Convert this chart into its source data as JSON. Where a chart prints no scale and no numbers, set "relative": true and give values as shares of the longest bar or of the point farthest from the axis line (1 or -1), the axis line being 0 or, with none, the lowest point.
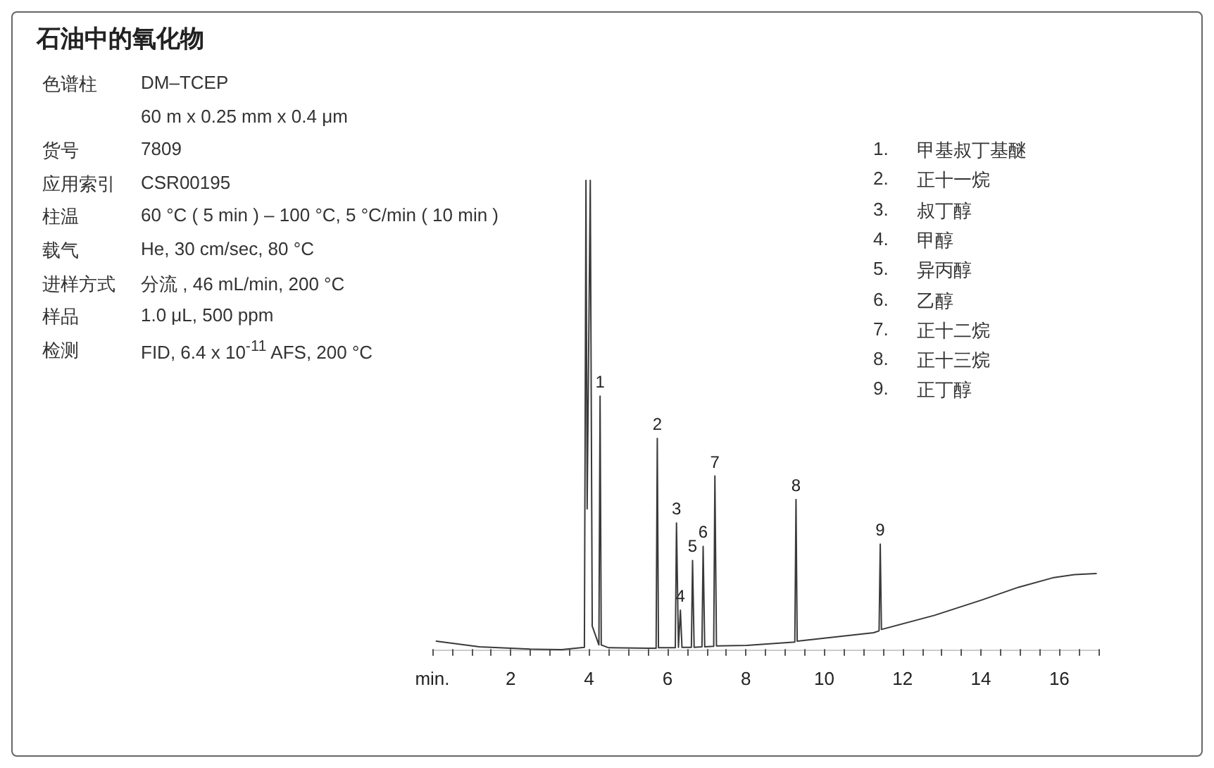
{
  "chart_data": [
    {
      "type": "other",
      "title": "石油中的氧化物",
      "annotations": [
        "色谱柱 DM–TCEP",
        "60 m x 0.25 mm x 0.4 μm",
        "货号 7809",
        "应用索引 CSR00195",
        "柱温 60 °C ( 5 min ) – 100 °C, 5 °C/min ( 10 min )",
        "载气 He, 30 cm/sec, 80 °C",
        "进样方式 分流 , 46 mL/min, 200 °C",
        "样品 1.0 μL, 500 ppm",
        "检测 FID, 6.4 x 10$^{-11}$ AFS, 200 °C"
      ]
    },
    {
      "type": "line",
      "relative": true,
      "color": "#3a3a3a",
      "marker": "none",
      "xlim": [
        0,
        17
      ],
      "xticks": [
        {
          "value": 0,
          "label": "min."
        },
        {
          "value": 0.5,
          "label": null
        },
        {
          "value": 1,
          "label": null
        },
        {
          "value": 1.5,
          "label": null
        },
        2,
        {
          "value": 2.5,
          "label": null
        },
        {
          "value": 3,
          "label": null
        },
        {
          "value": 3.5,
          "label": null
        },
        4,
        {
          "value": 4.5,
          "label": null
        },
        {
          "value": 5,
          "label": null
        },
        {
          "value": 5.5,
          "label": null
        },
        6,
        {
          "value": 6.5,
          "label": null
        },
        {
          "value": 7,
          "label": null
        },
        {
          "value": 7.5,
          "label": null
        },
        8,
        {
          "value": 8.5,
          "label": null
        },
        {
          "value": 9,
          "label": null
        },
        {
          "value": 9.5,
          "label": null
        },
        10,
        {
          "value": 10.5,
          "label": null
        },
        {
          "value": 11,
          "label": null
        },
        {
          "value": 11.5,
          "label": null
        },
        12,
        {
          "value": 12.5,
          "label": null
        },
        {
          "value": 13,
          "label": null
        },
        {
          "value": 13.5,
          "label": null
        },
        14,
        {
          "value": 14.5,
          "label": null
        },
        {
          "value": 15,
          "label": null
        },
        {
          "value": 15.5,
          "label": null
        },
        16,
        {
          "value": 16.5,
          "label": null
        },
        {
          "value": 17,
          "label": null
        }
      ],
      "x": [
        0.1,
        1.2,
        2.5,
        3.3,
        3.88,
        3.92,
        3.95,
        4.03,
        4.08,
        4.25,
        4.28,
        4.31,
        4.5,
        5.5,
        5.71,
        5.74,
        5.77,
        6.2,
        6.23,
        6.28,
        6.33,
        6.37,
        6.61,
        6.64,
        6.68,
        6.88,
        6.91,
        6.95,
        7.18,
        7.21,
        7.25,
        8.02,
        9.25,
        9.28,
        9.31,
        11.26,
        11.4,
        11.43,
        11.46,
        12.81,
        14.03,
        14.96,
        15.83,
        16.4,
        16.94
      ],
      "values": [
        0.018,
        0.006,
        0.001,
        0,
        0.005,
        1,
        0.3,
        1,
        0.05,
        0.01,
        0.54,
        0.01,
        0.004,
        0.003,
        0.003,
        0.45,
        0.004,
        0.004,
        0.27,
        0.005,
        0.084,
        0.005,
        0.005,
        0.19,
        0.005,
        0.006,
        0.22,
        0.006,
        0.007,
        0.37,
        0.008,
        0.009,
        0.016,
        0.32,
        0.018,
        0.036,
        0.04,
        0.225,
        0.043,
        0.073,
        0.106,
        0.133,
        0.153,
        0.16,
        0.162
      ],
      "annotations": [
        "1. 甲基叔丁基醚",
        "2. 正十一烷",
        "3. 叔丁醇",
        "4. 甲醇",
        "5. 异丙醇",
        "6. 乙醇",
        "7. 正十二烷",
        "8. 正十三烷",
        "9. 正丁醇",
        {
          "text": "1",
          "x": 4.28,
          "y": 0.54
        },
        {
          "text": "2",
          "x": 5.74,
          "y": 0.45
        },
        {
          "text": "3",
          "x": 6.23,
          "y": 0.27
        },
        {
          "text": "4",
          "x": 6.33,
          "y": 0.084
        },
        {
          "text": "5",
          "x": 6.64,
          "y": 0.19
        },
        {
          "text": "6",
          "x": 6.91,
          "y": 0.22
        },
        {
          "text": "7",
          "x": 7.21,
          "y": 0.37
        },
        {
          "text": "8",
          "x": 9.28,
          "y": 0.32
        },
        {
          "text": "9",
          "x": 11.43,
          "y": 0.225
        }
      ]
    }
  ]
}
